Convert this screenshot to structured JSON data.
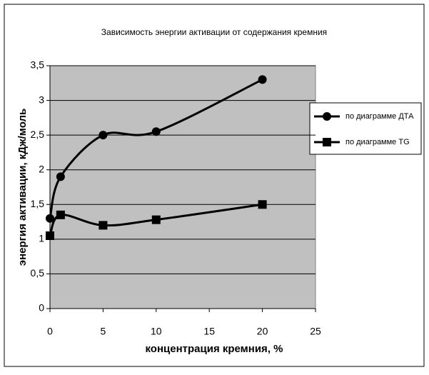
{
  "chart_data": {
    "type": "line",
    "title": "Зависимость энергии активации от содержания кремния",
    "x_label": "концентрация кремния, %",
    "y_label": "энергия активации, кДж/моль",
    "x": [
      0,
      1,
      5,
      10,
      20
    ],
    "series": [
      {
        "name": "по диаграмме ДТА",
        "color": "#000000",
        "marker": "circle",
        "values": [
          1.3,
          1.9,
          2.5,
          2.55,
          3.3
        ]
      },
      {
        "name": "по диаграмме TG",
        "color": "#000000",
        "marker": "square",
        "values": [
          1.05,
          1.35,
          1.2,
          1.28,
          1.5
        ]
      }
    ],
    "xlim": [
      0,
      25
    ],
    "xticks": [
      0,
      5,
      10,
      15,
      20,
      25
    ],
    "ylim": [
      0,
      3.5
    ],
    "yticks": [
      0,
      {
        "value": 0.5,
        "label": "0,5"
      },
      1,
      {
        "value": 1.5,
        "label": "1,5"
      },
      2,
      {
        "value": 2.5,
        "label": "2,5"
      },
      3,
      {
        "value": 3.5,
        "label": "3,5"
      }
    ],
    "grid": true,
    "legend": "right"
  }
}
